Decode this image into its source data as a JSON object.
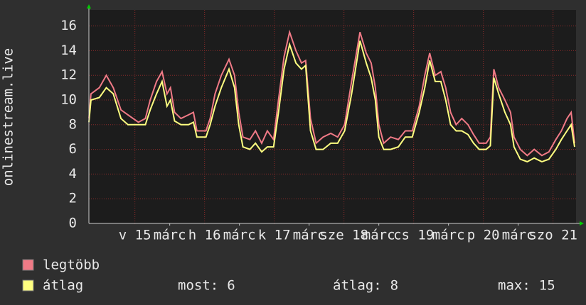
{
  "chart_data": {
    "type": "line",
    "y_label": "onlinestream.live",
    "x": [
      14.34,
      14.37,
      14.49,
      14.59,
      14.69,
      14.8,
      14.9,
      15.05,
      15.15,
      15.22,
      15.31,
      15.39,
      15.46,
      15.51,
      15.57,
      15.66,
      15.77,
      15.84,
      15.89,
      16.02,
      16.08,
      16.15,
      16.24,
      16.35,
      16.43,
      16.49,
      16.55,
      16.65,
      16.73,
      16.82,
      16.9,
      16.99,
      17.06,
      17.14,
      17.22,
      17.31,
      17.39,
      17.45,
      17.52,
      17.6,
      17.7,
      17.81,
      17.91,
      18.01,
      18.11,
      18.23,
      18.32,
      18.39,
      18.45,
      18.5,
      18.57,
      18.67,
      18.78,
      18.88,
      18.98,
      19.08,
      19.16,
      19.23,
      19.31,
      19.39,
      19.46,
      19.53,
      19.61,
      19.69,
      19.78,
      19.86,
      19.94,
      20.04,
      20.1,
      20.15,
      20.22,
      20.31,
      20.39,
      20.44,
      20.53,
      20.63,
      20.73,
      20.84,
      20.94,
      21.04,
      21.12,
      21.2,
      21.26,
      21.31
    ],
    "series": [
      {
        "name": "legtöbb",
        "color": "#f07a86",
        "values": [
          8.5,
          10.5,
          11,
          12,
          11,
          9.2,
          8.8,
          8.2,
          8.5,
          10,
          11.5,
          12.3,
          10.5,
          11,
          9,
          8.5,
          8.8,
          9,
          7.5,
          7.5,
          8.5,
          10.5,
          12,
          13.3,
          12,
          9,
          7,
          6.8,
          7.5,
          6.5,
          7.5,
          6.8,
          10,
          13.5,
          15.5,
          14,
          13,
          13.2,
          8.5,
          6.5,
          7,
          7.3,
          7,
          8,
          11.5,
          15.5,
          13.8,
          13,
          11,
          8,
          6.5,
          7,
          6.8,
          7.5,
          7.5,
          9.5,
          12,
          13.8,
          12,
          12.3,
          11,
          9,
          8,
          8.5,
          8,
          7.2,
          6.5,
          6.5,
          7,
          12.5,
          11,
          10,
          9,
          7,
          6,
          5.5,
          6,
          5.5,
          5.8,
          6.8,
          7.5,
          8.5,
          9,
          6.5
        ]
      },
      {
        "name": "átlag",
        "color": "#ffff80",
        "values": [
          8.2,
          10,
          10.2,
          11,
          10.5,
          8.5,
          8,
          8,
          8,
          9.2,
          10.5,
          11.5,
          9.5,
          10,
          8.3,
          8,
          8,
          8.2,
          7,
          7,
          8,
          9.5,
          11,
          12.5,
          11,
          8,
          6.2,
          6,
          6.5,
          5.8,
          6.2,
          6.2,
          9,
          12.5,
          14.5,
          13,
          12.5,
          12.8,
          7.5,
          6,
          6,
          6.5,
          6.5,
          7.5,
          10.5,
          14.8,
          13,
          11.8,
          10,
          7,
          6,
          6,
          6.2,
          7,
          7,
          9,
          11,
          13.2,
          11.5,
          11.5,
          10,
          8,
          7.5,
          7.5,
          7.2,
          6.5,
          6,
          6,
          6.3,
          11.8,
          10.5,
          9,
          8,
          6.2,
          5.2,
          5,
          5.3,
          5,
          5.2,
          6,
          6.8,
          7.5,
          8,
          6.2
        ]
      }
    ],
    "xlim": [
      14.34,
      21.33
    ],
    "xticks": [
      {
        "value": 15,
        "label": "v 15"
      },
      {
        "value": 15.5,
        "label": "márc"
      },
      {
        "value": 16,
        "label": "h 16"
      },
      {
        "value": 16.5,
        "label": "márc"
      },
      {
        "value": 17,
        "label": "k 17"
      },
      {
        "value": 17.5,
        "label": "márc"
      },
      {
        "value": 18,
        "label": "sze 18"
      },
      {
        "value": 18.5,
        "label": "márc"
      },
      {
        "value": 19,
        "label": "cs 19"
      },
      {
        "value": 19.5,
        "label": "márc"
      },
      {
        "value": 20,
        "label": "p 20"
      },
      {
        "value": 20.5,
        "label": "márc"
      },
      {
        "value": 21,
        "label": "szo 21"
      }
    ],
    "ylim": [
      0,
      17.3
    ],
    "yticks": [
      0,
      2,
      4,
      6,
      8,
      10,
      12,
      14,
      16
    ],
    "grid": true,
    "stats": [
      {
        "label": "most:",
        "value": 6
      },
      {
        "label": "átlag:",
        "value": 8
      },
      {
        "label": "max:",
        "value": 15
      }
    ]
  }
}
